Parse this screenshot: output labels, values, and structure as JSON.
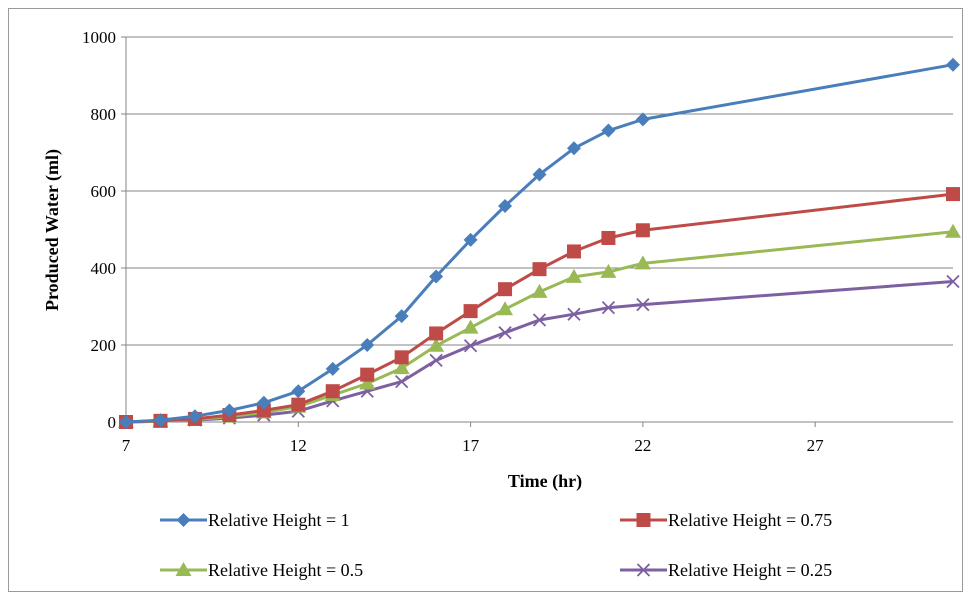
{
  "chart_data": {
    "type": "line",
    "title": "",
    "xlabel": "Time (hr)",
    "ylabel": "Produced Water (ml)",
    "xlim": [
      7,
      31
    ],
    "ylim": [
      0,
      1000
    ],
    "xticks": [
      7,
      12,
      17,
      22,
      27
    ],
    "yticks": [
      0,
      200,
      400,
      600,
      800,
      1000
    ],
    "grid": "horizontal",
    "legend_position": "bottom",
    "x": [
      7,
      8,
      9,
      10,
      11,
      12,
      13,
      14,
      15,
      16,
      17,
      18,
      19,
      20,
      21,
      22,
      31
    ],
    "series": [
      {
        "name": "Relative Height = 1",
        "color": "#4a7ebb",
        "marker": "diamond",
        "values": [
          0,
          5,
          15,
          30,
          50,
          80,
          138,
          200,
          275,
          378,
          473,
          561,
          643,
          711,
          757,
          786,
          928
        ]
      },
      {
        "name": "Relative Height = 0.75",
        "color": "#be4b48",
        "marker": "square",
        "values": [
          0,
          3,
          8,
          18,
          30,
          45,
          80,
          123,
          168,
          230,
          288,
          345,
          397,
          443,
          478,
          498,
          592
        ]
      },
      {
        "name": "Relative Height = 0.5",
        "color": "#98b954",
        "marker": "triangle",
        "values": [
          0,
          2,
          6,
          14,
          25,
          40,
          70,
          100,
          140,
          198,
          245,
          293,
          338,
          377,
          390,
          412,
          494
        ]
      },
      {
        "name": "Relative Height = 0.25",
        "color": "#7d60a0",
        "marker": "x",
        "values": [
          0,
          2,
          5,
          10,
          18,
          28,
          55,
          80,
          105,
          160,
          198,
          232,
          265,
          280,
          297,
          305,
          365
        ]
      }
    ]
  }
}
